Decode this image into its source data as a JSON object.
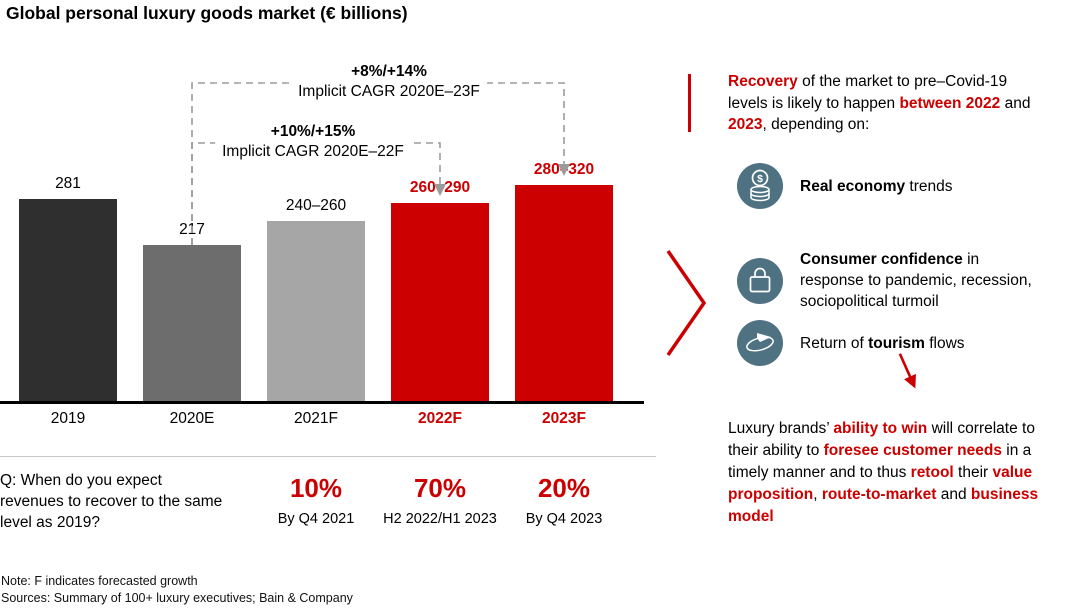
{
  "title": "Global personal luxury goods market (€ billions)",
  "colors": {
    "accent_red": "#cc0000",
    "icon_circle": "#4e7282",
    "dashed_line": "#9b9b9b"
  },
  "chart_data": {
    "type": "bar",
    "title": "Global personal luxury goods market (€ billions)",
    "unit": "€ billions",
    "categories": [
      "2019",
      "2020E",
      "2021F",
      "2022F",
      "2023F"
    ],
    "values": [
      281,
      217,
      250,
      275,
      300
    ],
    "bar_labels": [
      "281",
      "217",
      "240–260",
      "260–290",
      "280–320"
    ],
    "bar_colors": [
      "#2f2f2f",
      "#6d6d6d",
      "#a6a6a6",
      "#cc0000",
      "#cc0000"
    ],
    "highlighted": [
      false,
      false,
      false,
      true,
      true
    ],
    "ylim": [
      0,
      330
    ],
    "grid": false,
    "annotations": [
      {
        "rate": "+10%/+15%",
        "label": "Implicit CAGR 2020E–22F",
        "from": "2020E",
        "to": "2022F"
      },
      {
        "rate": "+8%/+14%",
        "label": "Implicit CAGR 2020E–23F",
        "from": "2020E",
        "to": "2023F"
      }
    ]
  },
  "survey": {
    "question": "Q: When do you expect revenues to recover to the same level as 2019?",
    "results": [
      {
        "pct": "10%",
        "label": "By Q4 2021"
      },
      {
        "pct": "70%",
        "label": "H2 2022/H1 2023"
      },
      {
        "pct": "20%",
        "label": "By Q4 2023"
      }
    ]
  },
  "panel": {
    "intro": {
      "r1": "Recovery",
      "t1": " of the market to pre–Covid-19 levels is likely to happen ",
      "r2": "between 2022",
      "t2": " and ",
      "r3": "2023",
      "t3": ", depending on:"
    },
    "factors": [
      {
        "icon": "coins-dollar-icon",
        "pre": "",
        "bold": "Real economy",
        "rest": " trends"
      },
      {
        "icon": "shopping-bag-icon",
        "pre": "",
        "bold": "Consumer confidence",
        "rest": " in response to pandemic, recession, sociopolitical turmoil"
      },
      {
        "icon": "plane-tourism-icon",
        "pre": "Return of ",
        "bold": "tourism",
        "rest": " flows"
      }
    ],
    "conclusion": {
      "t1": "Luxury brands’ ",
      "r1": "ability to win",
      "t2": " will correlate to their ability to ",
      "r2": "foresee customer needs",
      "t3": " in a timely manner and to thus ",
      "r3": "retool",
      "t4": " their ",
      "r4": "value proposition",
      "t5": ", ",
      "r5": "route-to-market",
      "t6": " and ",
      "r6": "business model"
    }
  },
  "footer": {
    "note": "Note: F indicates forecasted growth",
    "sources": "Sources: Summary of 100+ luxury executives; Bain & Company"
  }
}
